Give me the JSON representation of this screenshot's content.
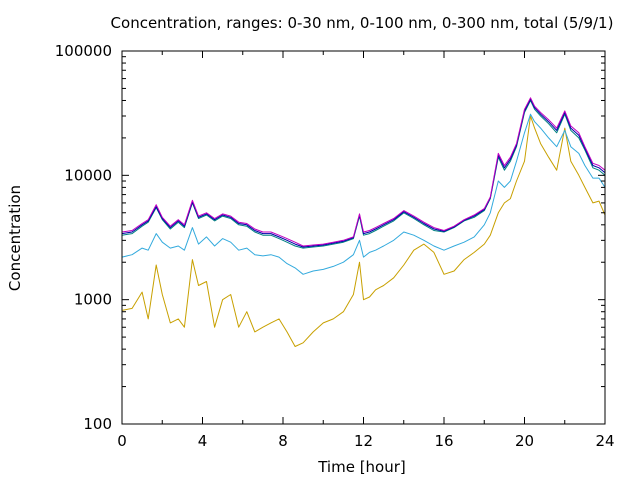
{
  "chart_data": {
    "type": "line",
    "title": "Concentration, ranges: 0-30 nm, 0-100 nm, 0-300 nm, total (5/9/1)",
    "xlabel": "Time [hour]",
    "ylabel": "Concentration",
    "xlim": [
      0,
      24
    ],
    "ylim": [
      100,
      100000
    ],
    "y_scale": "log",
    "grid": false,
    "x_ticks": [
      0,
      4,
      8,
      12,
      16,
      20,
      24
    ],
    "x_tick_labels": [
      "0",
      "4",
      "8",
      "12",
      "16",
      "20",
      "24"
    ],
    "y_ticks": [
      100,
      1000,
      10000,
      100000
    ],
    "y_tick_labels": [
      "100",
      "1000",
      "10000",
      "100000"
    ],
    "x": [
      0,
      0.5,
      1,
      1.3,
      1.7,
      2,
      2.4,
      2.8,
      3.1,
      3.5,
      3.8,
      4.2,
      4.6,
      5,
      5.4,
      5.8,
      6.2,
      6.6,
      7,
      7.4,
      7.8,
      8.2,
      8.6,
      9,
      9.5,
      10,
      10.5,
      11,
      11.5,
      11.8,
      12,
      12.3,
      12.6,
      13,
      13.5,
      14,
      14.5,
      15,
      15.5,
      16,
      16.5,
      17,
      17.5,
      18,
      18.3,
      18.7,
      19,
      19.3,
      19.6,
      20,
      20.3,
      20.5,
      20.8,
      21.2,
      21.6,
      22,
      22.3,
      22.7,
      23,
      23.4,
      23.7,
      24
    ],
    "series": [
      {
        "color": "#c8a000",
        "values": [
          820,
          850,
          1150,
          700,
          1900,
          1100,
          650,
          700,
          600,
          2100,
          1300,
          1400,
          600,
          1000,
          1100,
          600,
          800,
          550,
          600,
          650,
          700,
          550,
          420,
          450,
          550,
          650,
          700,
          800,
          1100,
          2000,
          1000,
          1050,
          1200,
          1300,
          1500,
          1900,
          2500,
          2800,
          2400,
          1600,
          1700,
          2100,
          2400,
          2800,
          3300,
          5000,
          6000,
          6500,
          9000,
          13000,
          30000,
          24000,
          18000,
          14000,
          11000,
          24000,
          13000,
          10000,
          8000,
          6000,
          6200,
          4800
        ]
      },
      {
        "color": "#33aadd",
        "values": [
          2200,
          2300,
          2600,
          2500,
          3400,
          2900,
          2600,
          2700,
          2500,
          3800,
          2800,
          3200,
          2700,
          3100,
          2900,
          2500,
          2600,
          2300,
          2250,
          2300,
          2200,
          1950,
          1800,
          1600,
          1700,
          1750,
          1850,
          2000,
          2300,
          3000,
          2200,
          2400,
          2500,
          2700,
          3000,
          3500,
          3300,
          3000,
          2700,
          2500,
          2700,
          2900,
          3200,
          4000,
          5000,
          9000,
          8000,
          9000,
          13000,
          22000,
          31000,
          27000,
          24000,
          20000,
          17000,
          23000,
          17000,
          15000,
          12000,
          9500,
          9500,
          8000
        ]
      },
      {
        "color": "#008080",
        "values": [
          3300,
          3400,
          3900,
          4200,
          5500,
          4400,
          3700,
          4200,
          3800,
          6000,
          4500,
          4800,
          4300,
          4700,
          4500,
          4000,
          3900,
          3500,
          3300,
          3300,
          3100,
          2900,
          2700,
          2600,
          2650,
          2700,
          2800,
          2900,
          3100,
          4700,
          3300,
          3400,
          3600,
          3900,
          4300,
          5000,
          4500,
          4000,
          3600,
          3500,
          3800,
          4300,
          4600,
          5200,
          6500,
          14000,
          11000,
          13000,
          17000,
          32000,
          40000,
          34000,
          30000,
          26000,
          22000,
          31000,
          23000,
          20000,
          16000,
          11500,
          11000,
          10000
        ]
      },
      {
        "color": "#0000aa",
        "values": [
          3400,
          3500,
          4000,
          4300,
          5600,
          4500,
          3800,
          4300,
          3900,
          6100,
          4600,
          4900,
          4400,
          4800,
          4600,
          4100,
          4000,
          3600,
          3400,
          3400,
          3200,
          3000,
          2800,
          2650,
          2700,
          2750,
          2850,
          2950,
          3150,
          4800,
          3400,
          3500,
          3700,
          4000,
          4400,
          5100,
          4600,
          4100,
          3700,
          3550,
          3850,
          4350,
          4700,
          5300,
          6600,
          14500,
          11500,
          13500,
          17500,
          33000,
          41000,
          35000,
          31000,
          27000,
          23000,
          32000,
          24000,
          21000,
          16500,
          12000,
          11500,
          10500
        ]
      },
      {
        "color": "#c000c0",
        "values": [
          3500,
          3600,
          4100,
          4400,
          5800,
          4600,
          3900,
          4400,
          4000,
          6300,
          4700,
          5000,
          4500,
          4900,
          4700,
          4200,
          4100,
          3700,
          3500,
          3500,
          3300,
          3100,
          2900,
          2700,
          2750,
          2800,
          2900,
          3000,
          3200,
          4900,
          3500,
          3600,
          3800,
          4100,
          4500,
          5200,
          4700,
          4200,
          3800,
          3600,
          3900,
          4400,
          4800,
          5400,
          6700,
          15000,
          12000,
          14000,
          18000,
          34000,
          42000,
          36000,
          32000,
          28000,
          24000,
          33000,
          25000,
          22000,
          17000,
          12500,
          12000,
          11000
        ]
      }
    ]
  }
}
